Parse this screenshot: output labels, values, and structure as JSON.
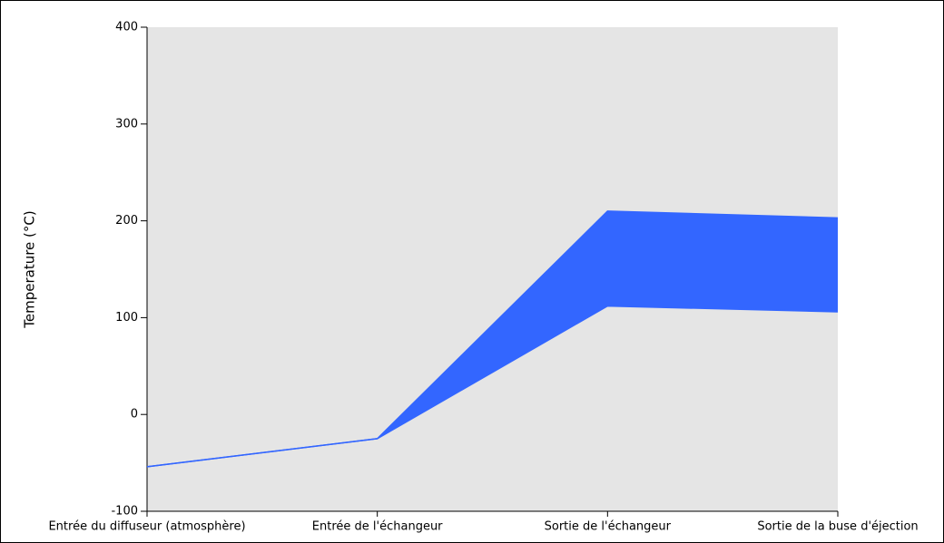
{
  "chart_data": {
    "type": "range-area",
    "y_label": "Temperature (°C)",
    "categories": [
      "Entrée du diffuseur (atmosphère)",
      "Entrée de l'échangeur",
      "Sortie de l'échangeur",
      "Sortie de la buse d'éjection"
    ],
    "series": [
      {
        "color": "#3366ff",
        "values": [
          -54,
          -25,
          112,
          106
        ]
      },
      {
        "color": "#3366ff",
        "values": [
          -54,
          -25,
          210,
          203
        ]
      }
    ],
    "ylim": [
      -100,
      400
    ],
    "yticks": [
      -100,
      0,
      100,
      200,
      300,
      400
    ],
    "grid": false
  }
}
